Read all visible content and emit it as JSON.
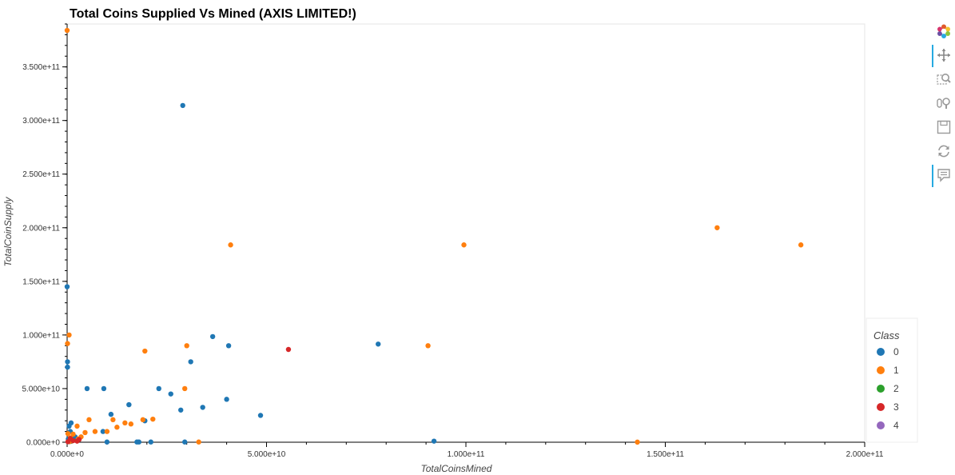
{
  "chart_data": {
    "type": "scatter",
    "title": "Total Coins Supplied Vs Mined (AXIS LIMITED!)",
    "xlabel": "TotalCoinsMined",
    "ylabel": "TotalCoinSupply",
    "xlim": [
      0,
      200000000000
    ],
    "ylim": [
      0,
      390000000000
    ],
    "x_ticks": [
      0,
      50000000000,
      100000000000,
      150000000000,
      200000000000
    ],
    "x_tick_labels": [
      "0.000e+0",
      "5.000e+10",
      "1.000e+11",
      "1.500e+11",
      "2.000e+11"
    ],
    "y_ticks": [
      0,
      50000000000,
      100000000000,
      150000000000,
      200000000000,
      250000000000,
      300000000000,
      350000000000
    ],
    "y_tick_labels": [
      "0.000e+0",
      "5.000e+10",
      "1.000e+11",
      "1.500e+11",
      "2.000e+11",
      "2.500e+11",
      "3.000e+11",
      "3.500e+11"
    ],
    "grid": false,
    "legend_title": "Class",
    "legend_placement": "bottom-right",
    "series": [
      {
        "name": "0",
        "color": "#1f77b4",
        "points": [
          [
            0,
            145000000000
          ],
          [
            100000000,
            75000000000
          ],
          [
            100000000,
            70000000000
          ],
          [
            29000000000,
            314000000000
          ],
          [
            36500000000,
            98500000000
          ],
          [
            40500000000,
            90000000000
          ],
          [
            31000000000,
            75000000000
          ],
          [
            78000000000,
            91500000000
          ],
          [
            5000000000,
            50000000000
          ],
          [
            9200000000,
            50000000000
          ],
          [
            23000000000,
            50000000000
          ],
          [
            26000000000,
            45000000000
          ],
          [
            15500000000,
            35000000000
          ],
          [
            40000000000,
            40000000000
          ],
          [
            34000000000,
            32500000000
          ],
          [
            28500000000,
            30000000000
          ],
          [
            48500000000,
            25000000000
          ],
          [
            11000000000,
            26000000000
          ],
          [
            19500000000,
            20000000000
          ],
          [
            9000000000,
            10000000000
          ],
          [
            1000000000,
            18000000000
          ],
          [
            500000000,
            15000000000
          ],
          [
            800000000,
            10000000000
          ],
          [
            2000000000,
            5000000000
          ],
          [
            300000000,
            3000000000
          ],
          [
            1500000000,
            2000000000
          ],
          [
            10000000000,
            200000000
          ],
          [
            17500000000,
            200000000
          ],
          [
            18000000000,
            200000000
          ],
          [
            21000000000,
            200000000
          ],
          [
            29500000000,
            200000000
          ],
          [
            92000000000,
            1000000000
          ],
          [
            500000000,
            500000000
          ],
          [
            1000000000,
            800000000
          ]
        ]
      },
      {
        "name": "1",
        "color": "#ff7f0e",
        "points": [
          [
            0,
            384000000000
          ],
          [
            41000000000,
            184000000000
          ],
          [
            99500000000,
            184000000000
          ],
          [
            163000000000,
            200000000000
          ],
          [
            184000000000,
            184000000000
          ],
          [
            500000000,
            100000000000
          ],
          [
            100000000,
            92000000000
          ],
          [
            19500000000,
            85000000000
          ],
          [
            30000000000,
            90000000000
          ],
          [
            90500000000,
            90000000000
          ],
          [
            29500000000,
            50000000000
          ],
          [
            5500000000,
            21000000000
          ],
          [
            11500000000,
            21000000000
          ],
          [
            14500000000,
            18000000000
          ],
          [
            16000000000,
            17000000000
          ],
          [
            19000000000,
            21000000000
          ],
          [
            21500000000,
            21500000000
          ],
          [
            12500000000,
            14000000000
          ],
          [
            7000000000,
            10000000000
          ],
          [
            10000000000,
            10000000000
          ],
          [
            2500000000,
            15000000000
          ],
          [
            4500000000,
            9000000000
          ],
          [
            1500000000,
            7500000000
          ],
          [
            3500000000,
            5000000000
          ],
          [
            2800000000,
            3000000000
          ],
          [
            800000000,
            4000000000
          ],
          [
            200000000,
            8000000000
          ],
          [
            1200000000,
            1200000000
          ],
          [
            600000000,
            600000000
          ],
          [
            33000000000,
            200000000
          ],
          [
            143000000000,
            100000000
          ]
        ]
      },
      {
        "name": "2",
        "color": "#2ca02c",
        "points": []
      },
      {
        "name": "3",
        "color": "#d62728",
        "points": [
          [
            55500000000,
            86500000000
          ],
          [
            1500000000,
            1500000000
          ],
          [
            2500000000,
            1000000000
          ],
          [
            200000000,
            500000000
          ],
          [
            3000000000,
            2500000000
          ],
          [
            800000000,
            3500000000
          ]
        ]
      },
      {
        "name": "4",
        "color": "#9467bd",
        "points": []
      }
    ]
  },
  "toolbar": {
    "tools": [
      {
        "icon": "bokeh-logo-icon",
        "active": false
      },
      {
        "icon": "pan-icon",
        "active": true
      },
      {
        "icon": "box-zoom-icon",
        "active": false
      },
      {
        "icon": "wheel-zoom-icon",
        "active": false
      },
      {
        "icon": "save-icon",
        "active": false
      },
      {
        "icon": "reset-icon",
        "active": false
      },
      {
        "icon": "hover-icon",
        "active": true
      }
    ]
  }
}
